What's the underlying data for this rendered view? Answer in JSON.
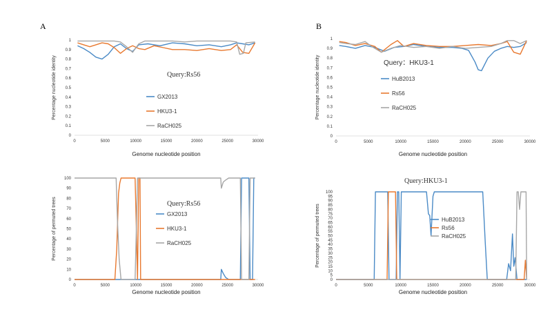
{
  "panels": {
    "A": {
      "letter": "A"
    },
    "B": {
      "letter": "B"
    }
  },
  "colors": {
    "series1": "#4a8ac6",
    "series2": "#e8782e",
    "series3": "#a6a6a6"
  },
  "chart_data": [
    {
      "id": "chartA1",
      "type": "line",
      "query_label": "Query:Rs56",
      "xlabel": "Genome nucleotide position",
      "ylabel": "Percentage nucleotide identity",
      "xlim": [
        0,
        30000
      ],
      "ylim": [
        0,
        1
      ],
      "xticks": [
        0,
        5000,
        10000,
        15000,
        20000,
        25000,
        30000
      ],
      "yticks": [
        0,
        0.1,
        0.2,
        0.3,
        0.4,
        0.5,
        0.6,
        0.7,
        0.8,
        0.9,
        1
      ],
      "ytick_labels": [
        "0",
        "0.1",
        "0.2",
        "0.3",
        "0.4",
        "0.5",
        "0.6",
        "0.7",
        "0.8",
        "0.9",
        "1"
      ],
      "series": [
        {
          "name": "GX2013",
          "color": "#4a8ac6",
          "points": [
            [
              500,
              0.94
            ],
            [
              1500,
              0.91
            ],
            [
              2500,
              0.87
            ],
            [
              3500,
              0.82
            ],
            [
              4500,
              0.8
            ],
            [
              5500,
              0.85
            ],
            [
              6500,
              0.93
            ],
            [
              7500,
              0.96
            ],
            [
              8500,
              0.91
            ],
            [
              9500,
              0.88
            ],
            [
              10500,
              0.95
            ],
            [
              12000,
              0.96
            ],
            [
              14000,
              0.94
            ],
            [
              16000,
              0.97
            ],
            [
              18000,
              0.96
            ],
            [
              20000,
              0.94
            ],
            [
              22000,
              0.95
            ],
            [
              24000,
              0.93
            ],
            [
              25500,
              0.95
            ],
            [
              26500,
              0.97
            ],
            [
              27500,
              0.96
            ],
            [
              28500,
              0.95
            ],
            [
              29500,
              0.97
            ]
          ]
        },
        {
          "name": "HKU3-1",
          "color": "#e8782e",
          "points": [
            [
              500,
              0.97
            ],
            [
              1500,
              0.95
            ],
            [
              2500,
              0.93
            ],
            [
              3500,
              0.95
            ],
            [
              4500,
              0.97
            ],
            [
              5500,
              0.96
            ],
            [
              6500,
              0.92
            ],
            [
              7500,
              0.86
            ],
            [
              8500,
              0.91
            ],
            [
              9500,
              0.94
            ],
            [
              10500,
              0.91
            ],
            [
              11500,
              0.9
            ],
            [
              13000,
              0.94
            ],
            [
              14500,
              0.92
            ],
            [
              16000,
              0.9
            ],
            [
              18000,
              0.9
            ],
            [
              20000,
              0.89
            ],
            [
              22000,
              0.91
            ],
            [
              24000,
              0.89
            ],
            [
              25500,
              0.9
            ],
            [
              26500,
              0.95
            ],
            [
              27500,
              0.87
            ],
            [
              28500,
              0.86
            ],
            [
              29500,
              0.97
            ]
          ]
        },
        {
          "name": "RaCH025",
          "color": "#a6a6a6",
          "points": [
            [
              500,
              0.99
            ],
            [
              2500,
              0.99
            ],
            [
              4500,
              0.99
            ],
            [
              6500,
              0.99
            ],
            [
              7500,
              0.98
            ],
            [
              8500,
              0.93
            ],
            [
              9500,
              0.87
            ],
            [
              10500,
              0.96
            ],
            [
              11500,
              0.99
            ],
            [
              14000,
              0.99
            ],
            [
              16000,
              0.99
            ],
            [
              18000,
              0.98
            ],
            [
              20000,
              0.99
            ],
            [
              22000,
              0.99
            ],
            [
              24000,
              0.99
            ],
            [
              25500,
              0.99
            ],
            [
              26500,
              0.98
            ],
            [
              27000,
              0.85
            ],
            [
              27600,
              0.86
            ],
            [
              28000,
              0.97
            ],
            [
              29500,
              0.98
            ]
          ]
        }
      ]
    },
    {
      "id": "chartB1",
      "type": "line",
      "query_label": "Query：HKU3-1",
      "xlabel": "Genome nucleotide position",
      "ylabel": "Percentage nucleotide identity",
      "xlim": [
        0,
        30000
      ],
      "ylim": [
        0,
        1
      ],
      "xticks": [
        0,
        5000,
        10000,
        15000,
        20000,
        25000,
        30000
      ],
      "yticks": [
        0,
        0.1,
        0.2,
        0.3,
        0.4,
        0.5,
        0.6,
        0.7,
        0.8,
        0.9,
        1
      ],
      "ytick_labels": [
        "0",
        "0.1",
        "0.2",
        "0.3",
        "0.4",
        "0.5",
        "0.6",
        "0.7",
        "0.8",
        "0.9",
        "1"
      ],
      "series": [
        {
          "name": "HuB2013",
          "color": "#4a8ac6",
          "points": [
            [
              500,
              0.93
            ],
            [
              1500,
              0.92
            ],
            [
              3000,
              0.9
            ],
            [
              4500,
              0.93
            ],
            [
              6000,
              0.91
            ],
            [
              7500,
              0.87
            ],
            [
              9000,
              0.91
            ],
            [
              10500,
              0.92
            ],
            [
              12000,
              0.94
            ],
            [
              14000,
              0.92
            ],
            [
              16000,
              0.91
            ],
            [
              18000,
              0.91
            ],
            [
              19500,
              0.9
            ],
            [
              20500,
              0.88
            ],
            [
              21500,
              0.76
            ],
            [
              22000,
              0.68
            ],
            [
              22500,
              0.67
            ],
            [
              23500,
              0.8
            ],
            [
              24500,
              0.87
            ],
            [
              25500,
              0.9
            ],
            [
              26500,
              0.92
            ],
            [
              27500,
              0.91
            ],
            [
              28500,
              0.92
            ],
            [
              29500,
              0.96
            ]
          ]
        },
        {
          "name": "Rs56",
          "color": "#e8782e",
          "points": [
            [
              500,
              0.97
            ],
            [
              1500,
              0.96
            ],
            [
              3000,
              0.93
            ],
            [
              4500,
              0.95
            ],
            [
              6000,
              0.92
            ],
            [
              7000,
              0.86
            ],
            [
              8500,
              0.94
            ],
            [
              9500,
              0.98
            ],
            [
              10500,
              0.92
            ],
            [
              12000,
              0.95
            ],
            [
              14000,
              0.93
            ],
            [
              16000,
              0.92
            ],
            [
              18000,
              0.92
            ],
            [
              20000,
              0.93
            ],
            [
              22000,
              0.94
            ],
            [
              24000,
              0.93
            ],
            [
              25500,
              0.95
            ],
            [
              26500,
              0.97
            ],
            [
              27500,
              0.86
            ],
            [
              28500,
              0.84
            ],
            [
              29500,
              0.98
            ]
          ]
        },
        {
          "name": "RaCH025",
          "color": "#a6a6a6",
          "points": [
            [
              500,
              0.96
            ],
            [
              1500,
              0.95
            ],
            [
              3000,
              0.94
            ],
            [
              4500,
              0.97
            ],
            [
              5500,
              0.92
            ],
            [
              7000,
              0.86
            ],
            [
              8500,
              0.9
            ],
            [
              10000,
              0.93
            ],
            [
              12000,
              0.91
            ],
            [
              14000,
              0.92
            ],
            [
              16000,
              0.9
            ],
            [
              18000,
              0.92
            ],
            [
              20000,
              0.9
            ],
            [
              22000,
              0.91
            ],
            [
              24000,
              0.92
            ],
            [
              25500,
              0.95
            ],
            [
              26500,
              0.98
            ],
            [
              27500,
              0.98
            ],
            [
              28500,
              0.95
            ],
            [
              29500,
              0.98
            ]
          ]
        }
      ]
    },
    {
      "id": "chartA2",
      "type": "line",
      "query_label": "Query:Rs56",
      "xlabel": "Genome nucleotide position",
      "ylabel": "Percentage of permuted trees",
      "xlim": [
        0,
        30000
      ],
      "ylim": [
        0,
        100
      ],
      "xticks": [
        0,
        5000,
        10000,
        15000,
        20000,
        25000,
        30000
      ],
      "yticks": [
        0,
        10,
        20,
        30,
        40,
        50,
        60,
        70,
        80,
        90,
        100
      ],
      "ytick_labels": [
        "0",
        "10",
        "20",
        "30",
        "40",
        "50",
        "60",
        "70",
        "80",
        "90",
        "100"
      ],
      "series": [
        {
          "name": "GX2013",
          "color": "#4a8ac6",
          "points": [
            [
              0,
              0
            ],
            [
              23900,
              0
            ],
            [
              24000,
              10
            ],
            [
              24300,
              6
            ],
            [
              24700,
              2
            ],
            [
              25200,
              0
            ],
            [
              27100,
              0
            ],
            [
              27300,
              100
            ],
            [
              28500,
              100
            ],
            [
              28700,
              0
            ],
            [
              29100,
              0
            ],
            [
              29300,
              100
            ],
            [
              29500,
              100
            ]
          ]
        },
        {
          "name": "HKU3-1",
          "color": "#e8782e",
          "points": [
            [
              0,
              0
            ],
            [
              6600,
              0
            ],
            [
              6900,
              30
            ],
            [
              7200,
              85
            ],
            [
              7400,
              95
            ],
            [
              7600,
              100
            ],
            [
              9900,
              100
            ],
            [
              10100,
              50
            ],
            [
              10300,
              0
            ],
            [
              10500,
              100
            ],
            [
              10700,
              100
            ],
            [
              10800,
              0
            ],
            [
              29500,
              0
            ]
          ]
        },
        {
          "name": "RaCH025",
          "color": "#a6a6a6",
          "points": [
            [
              0,
              100
            ],
            [
              6800,
              100
            ],
            [
              7000,
              60
            ],
            [
              7300,
              20
            ],
            [
              7600,
              0
            ],
            [
              9900,
              0
            ],
            [
              10100,
              50
            ],
            [
              10300,
              100
            ],
            [
              23900,
              100
            ],
            [
              24000,
              90
            ],
            [
              24300,
              96
            ],
            [
              24700,
              98
            ],
            [
              25200,
              100
            ],
            [
              27100,
              100
            ],
            [
              27300,
              0
            ],
            [
              28500,
              0
            ],
            [
              28700,
              100
            ],
            [
              29500,
              100
            ]
          ]
        }
      ]
    },
    {
      "id": "chartB2",
      "type": "line",
      "query_label": "Query:HKU3-1",
      "xlabel": "Genome nucleotide position",
      "ylabel": "Percentage of permuted trees",
      "xlim": [
        0,
        30000
      ],
      "ylim": [
        0,
        100
      ],
      "xticks": [
        0,
        5000,
        10000,
        15000,
        20000,
        25000,
        30000
      ],
      "yticks": [
        0,
        5,
        10,
        15,
        20,
        25,
        30,
        35,
        40,
        45,
        50,
        55,
        60,
        65,
        70,
        75,
        80,
        85,
        90,
        95,
        100
      ],
      "ytick_labels": [
        "0",
        "5",
        "10",
        "15",
        "20",
        "25",
        "30",
        "35",
        "40",
        "45",
        "50",
        "55",
        "60",
        "65",
        "70",
        "75",
        "80",
        "85",
        "90",
        "95",
        "100"
      ],
      "series": [
        {
          "name": "HuB2013",
          "color": "#4a8ac6",
          "points": [
            [
              0,
              0
            ],
            [
              5900,
              0
            ],
            [
              6100,
              100
            ],
            [
              8000,
              100
            ],
            [
              8200,
              0
            ],
            [
              9300,
              0
            ],
            [
              9500,
              100
            ],
            [
              9700,
              100
            ],
            [
              9900,
              0
            ],
            [
              10100,
              100
            ],
            [
              14000,
              100
            ],
            [
              14300,
              75
            ],
            [
              14500,
              73
            ],
            [
              14700,
              50
            ],
            [
              15000,
              95
            ],
            [
              15200,
              100
            ],
            [
              22700,
              100
            ],
            [
              23100,
              40
            ],
            [
              23400,
              0
            ],
            [
              26400,
              0
            ],
            [
              26700,
              18
            ],
            [
              27000,
              10
            ],
            [
              27300,
              52
            ],
            [
              27500,
              15
            ],
            [
              27700,
              25
            ],
            [
              28000,
              0
            ],
            [
              29500,
              0
            ]
          ]
        },
        {
          "name": "Rs56",
          "color": "#e8782e",
          "points": [
            [
              0,
              0
            ],
            [
              7900,
              0
            ],
            [
              8100,
              100
            ],
            [
              9200,
              100
            ],
            [
              9400,
              0
            ],
            [
              9900,
              0
            ],
            [
              10100,
              0
            ],
            [
              29100,
              0
            ],
            [
              29300,
              22
            ],
            [
              29500,
              0
            ]
          ]
        },
        {
          "name": "RaCH025",
          "color": "#a6a6a6",
          "points": [
            [
              0,
              0
            ],
            [
              27800,
              0
            ],
            [
              28000,
              100
            ],
            [
              28200,
              100
            ],
            [
              28400,
              80
            ],
            [
              28600,
              100
            ],
            [
              29400,
              100
            ],
            [
              29500,
              0
            ]
          ]
        }
      ]
    }
  ]
}
